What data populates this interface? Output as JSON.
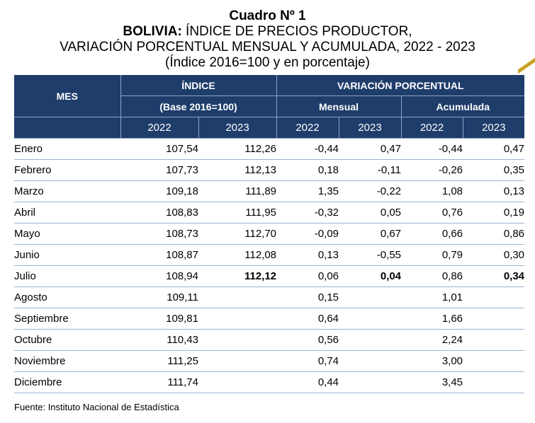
{
  "title": {
    "line1": "Cuadro Nº 1",
    "line2_bold": "BOLIVIA:",
    "line2_rest": " ÍNDICE DE PRECIOS PRODUCTOR,",
    "line3": "VARIACIÓN PORCENTUAL MENSUAL Y ACUMULADA, 2022 - 2023",
    "line4": "(Índice 2016=100 y en porcentaje)"
  },
  "header": {
    "mes": "MES",
    "indice": "ÍNDICE",
    "base": "(Base 2016=100)",
    "variacion": "VARIACIÓN PORCENTUAL",
    "mensual": "Mensual",
    "acumulada": "Acumulada",
    "years": [
      "2022",
      "2023",
      "2022",
      "2023",
      "2022",
      "2023"
    ]
  },
  "rows": [
    {
      "mes": "Enero",
      "i22": "107,54",
      "i23": "112,26",
      "m22": "-0,44",
      "m23": "0,47",
      "a22": "-0,44",
      "a23": "0,47"
    },
    {
      "mes": "Febrero",
      "i22": "107,73",
      "i23": "112,13",
      "m22": "0,18",
      "m23": "-0,11",
      "a22": "-0,26",
      "a23": "0,35"
    },
    {
      "mes": "Marzo",
      "i22": "109,18",
      "i23": "111,89",
      "m22": "1,35",
      "m23": "-0,22",
      "a22": "1,08",
      "a23": "0,13"
    },
    {
      "mes": "Abril",
      "i22": "108,83",
      "i23": "111,95",
      "m22": "-0,32",
      "m23": "0,05",
      "a22": "0,76",
      "a23": "0,19"
    },
    {
      "mes": "Mayo",
      "i22": "108,73",
      "i23": "112,70",
      "m22": "-0,09",
      "m23": "0,67",
      "a22": "0,66",
      "a23": "0,86"
    },
    {
      "mes": "Junio",
      "i22": "108,87",
      "i23": "112,08",
      "m22": "0,13",
      "m23": "-0,55",
      "a22": "0,79",
      "a23": "0,30"
    },
    {
      "mes": "Julio",
      "i22": "108,94",
      "i23": "112,12",
      "m22": "0,06",
      "m23": "0,04",
      "a22": "0,86",
      "a23": "0,34"
    },
    {
      "mes": "Agosto",
      "i22": "109,11",
      "i23": "",
      "m22": "0,15",
      "m23": "",
      "a22": "1,01",
      "a23": ""
    },
    {
      "mes": "Septiembre",
      "i22": "109,81",
      "i23": "",
      "m22": "0,64",
      "m23": "",
      "a22": "1,66",
      "a23": ""
    },
    {
      "mes": "Octubre",
      "i22": "110,43",
      "i23": "",
      "m22": "0,56",
      "m23": "",
      "a22": "2,24",
      "a23": ""
    },
    {
      "mes": "Noviembre",
      "i22": "111,25",
      "i23": "",
      "m22": "0,74",
      "m23": "",
      "a22": "3,00",
      "a23": ""
    },
    {
      "mes": "Diciembre",
      "i22": "111,74",
      "i23": "",
      "m22": "0,44",
      "m23": "",
      "a22": "3,45",
      "a23": ""
    }
  ],
  "footer": "Fuente: Instituto Nacional de Estadística",
  "colors": {
    "header_bg": "#1f3d6b",
    "accent": "#c9a227"
  }
}
